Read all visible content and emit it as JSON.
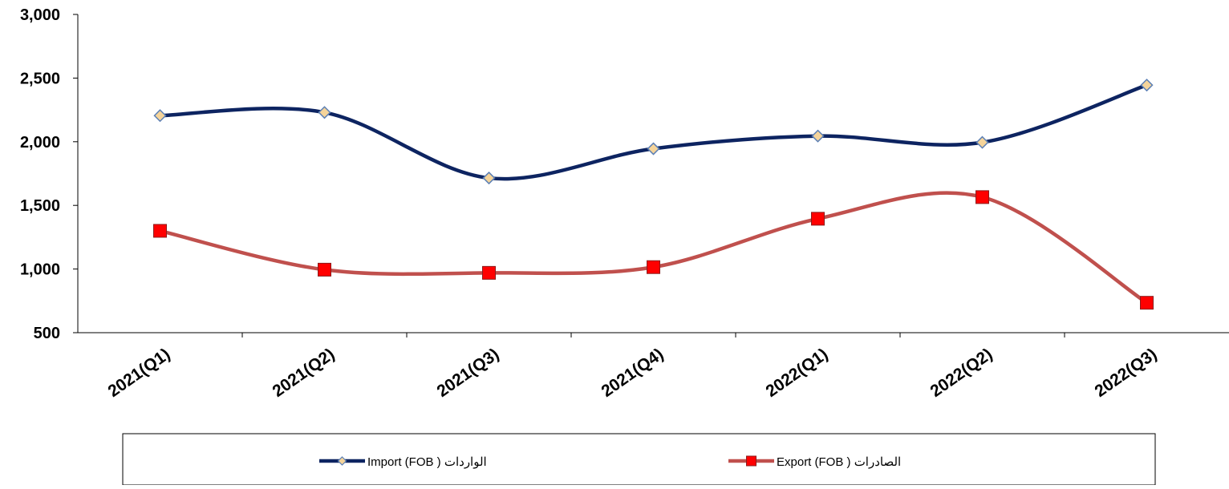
{
  "chart_data": {
    "type": "line",
    "categories": [
      "2021(Q1)",
      "2021(Q2)",
      "2021(Q3)",
      "2021(Q4)",
      "2022(Q1)",
      "2022(Q2)",
      "2022(Q3)"
    ],
    "series": [
      {
        "name": "الواردات ( Import (FOB",
        "values": [
          2205,
          2230,
          1715,
          1945,
          2045,
          1995,
          2445
        ],
        "color": "#0d2461",
        "marker": "diamond",
        "marker_fill": "#f5d49a",
        "marker_stroke": "#5b7fb5"
      },
      {
        "name": "الصادرات  ( Export (FOB",
        "values": [
          1300,
          995,
          970,
          1015,
          1395,
          1565,
          735
        ],
        "color": "#c0504d",
        "marker": "square",
        "marker_fill": "#ff0000",
        "marker_stroke": "#8b1a1a"
      }
    ],
    "ylim": [
      500,
      3000
    ],
    "yticks": [
      500,
      1000,
      1500,
      2000,
      2500,
      3000
    ],
    "ytick_labels": [
      "500",
      "1,000",
      "1,500",
      "2,000",
      "2,500",
      "3,000"
    ],
    "grid": false,
    "legend_position": "bottom",
    "title": "",
    "xlabel": "",
    "ylabel": ""
  }
}
